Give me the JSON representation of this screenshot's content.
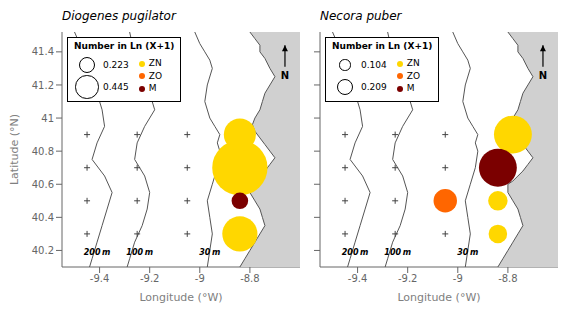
{
  "chart_data": [
    {
      "type": "scatter",
      "title": "Diogenes pugilator",
      "xlabel": "Longitude (°W)",
      "ylabel": "Latitude (°N)",
      "xlim": [
        -9.55,
        -8.6
      ],
      "ylim": [
        40.1,
        41.52
      ],
      "xticks": [
        -9.4,
        -9.2,
        -9,
        -8.8
      ],
      "yticks": [
        40.2,
        40.4,
        40.6,
        40.8,
        41,
        41.2,
        41.4
      ],
      "grid": false,
      "legend": "upper left",
      "size_legend": {
        "title": "Number in Ln (X+1)",
        "values": [
          0.223,
          0.445
        ]
      },
      "series": [
        {
          "name": "ZN",
          "color": "#FFD700",
          "x": [
            -8.84,
            -8.84,
            -8.84
          ],
          "y": [
            40.3,
            40.7,
            40.9
          ],
          "size": [
            0.18,
            0.445,
            0.15
          ]
        },
        {
          "name": "ZO",
          "color": "#FF6600",
          "x": [],
          "y": [],
          "size": []
        },
        {
          "name": "M",
          "color": "#7B0000",
          "x": [
            -8.84
          ],
          "y": [
            40.5
          ],
          "size": [
            0.04
          ]
        }
      ],
      "stations": {
        "color": "#444444",
        "marker": "plus",
        "x": [
          -9.45,
          -9.25,
          -9.05,
          -9.45,
          -9.25,
          -9.05,
          -9.45,
          -9.25,
          -9.05,
          -9.45,
          -9.25,
          -9.05
        ],
        "y": [
          40.3,
          40.3,
          40.3,
          40.5,
          40.5,
          40.5,
          40.7,
          40.7,
          40.7,
          40.9,
          40.9,
          40.9
        ]
      },
      "isobaths": [
        {
          "color": "#555555",
          "x": [
            -9.5,
            -9.48,
            -9.44,
            -9.43,
            -9.41,
            -9.39,
            -9.38,
            -9.41,
            -9.43,
            -9.38,
            -9.35,
            -9.37,
            -9.39,
            -9.41,
            -9.43,
            -9.44
          ],
          "y": [
            41.52,
            41.45,
            41.35,
            41.25,
            41.15,
            41.05,
            40.95,
            40.85,
            40.75,
            40.65,
            40.55,
            40.45,
            40.35,
            40.25,
            40.15,
            40.1
          ]
        },
        {
          "color": "#555555",
          "x": [
            -9.28,
            -9.27,
            -9.24,
            -9.22,
            -9.2,
            -9.18,
            -9.22,
            -9.25,
            -9.26,
            -9.22,
            -9.2,
            -9.21,
            -9.23,
            -9.26,
            -9.28,
            -9.29
          ],
          "y": [
            41.52,
            41.45,
            41.35,
            41.25,
            41.15,
            41.05,
            40.95,
            40.85,
            40.75,
            40.65,
            40.55,
            40.45,
            40.35,
            40.25,
            40.15,
            40.1
          ]
        },
        {
          "color": "#555555",
          "x": [
            -9.02,
            -9.0,
            -8.98,
            -8.96,
            -8.95,
            -8.97,
            -8.98,
            -8.96,
            -8.94,
            -8.92,
            -8.93,
            -8.92,
            -8.93,
            -8.95,
            -8.97,
            -8.96,
            -8.95,
            -8.96,
            -8.97
          ],
          "y": [
            41.52,
            41.45,
            41.4,
            41.35,
            41.3,
            41.2,
            41.1,
            41.0,
            40.95,
            40.9,
            40.85,
            40.8,
            40.7,
            40.6,
            40.5,
            40.4,
            40.3,
            40.2,
            40.1
          ]
        }
      ],
      "coastline": {
        "color": "#555555",
        "land_color": "#d0d0d0",
        "x": [
          -8.8,
          -8.78,
          -8.76,
          -8.76,
          -8.74,
          -8.72,
          -8.7,
          -8.72,
          -8.74,
          -8.75,
          -8.76,
          -8.78,
          -8.79,
          -8.78,
          -8.76,
          -8.74,
          -8.72,
          -8.7,
          -8.72,
          -8.74,
          -8.76,
          -8.78,
          -8.8,
          -8.8,
          -8.78,
          -8.76,
          -8.75,
          -8.74,
          -8.76,
          -8.78,
          -8.8,
          -8.82,
          -8.84
        ],
        "y": [
          41.52,
          41.48,
          41.44,
          41.4,
          41.36,
          41.3,
          41.25,
          41.2,
          41.15,
          41.1,
          41.05,
          41.0,
          40.96,
          40.92,
          40.88,
          40.84,
          40.8,
          40.76,
          40.72,
          40.68,
          40.65,
          40.62,
          40.6,
          40.55,
          40.5,
          40.45,
          40.4,
          40.35,
          40.3,
          40.25,
          40.2,
          40.15,
          40.1
        ]
      },
      "annotations": [
        {
          "text": "200 m",
          "x": -9.41,
          "y": 40.145
        },
        {
          "text": "100 m",
          "x": -9.24,
          "y": 40.145
        },
        {
          "text": "30 m",
          "x": -8.96,
          "y": 40.145
        },
        {
          "text": "N",
          "x": -8.66,
          "y": 41.31,
          "arrow_y": 41.44
        }
      ]
    },
    {
      "type": "scatter",
      "title": "Necora puber",
      "xlabel": "Longitude (°W)",
      "xlim": [
        -9.55,
        -8.6
      ],
      "ylim": [
        40.1,
        41.52
      ],
      "xticks": [
        -9.4,
        -9.2,
        -9,
        -8.8
      ],
      "yticks": [
        40.2,
        40.4,
        40.6,
        40.8,
        41,
        41.2,
        41.4
      ],
      "tick_labels": "x",
      "grid": false,
      "legend": "upper left",
      "size_legend": {
        "title": "Number in Ln (X+1)",
        "values": [
          0.104,
          0.209
        ]
      },
      "series": [
        {
          "name": "ZN",
          "color": "#FFD700",
          "x": [
            -8.84,
            -8.84,
            -8.78
          ],
          "y": [
            40.3,
            40.5,
            40.9
          ],
          "size": [
            0.05,
            0.055,
            0.209
          ]
        },
        {
          "name": "ZO",
          "color": "#FF6600",
          "x": [
            -9.05
          ],
          "y": [
            40.5
          ],
          "size": [
            0.08
          ]
        },
        {
          "name": "M",
          "color": "#7B0000",
          "x": [
            -8.84
          ],
          "y": [
            40.7
          ],
          "size": [
            0.209
          ]
        }
      ],
      "stations": {
        "color": "#444444",
        "marker": "plus",
        "x": [
          -9.45,
          -9.25,
          -9.05,
          -9.45,
          -9.25,
          -9.05,
          -9.45,
          -9.25,
          -9.05,
          -9.45,
          -9.25,
          -9.05
        ],
        "y": [
          40.3,
          40.3,
          40.3,
          40.5,
          40.5,
          40.5,
          40.7,
          40.7,
          40.7,
          40.9,
          40.9,
          40.9
        ]
      },
      "isobaths": [
        {
          "color": "#555555",
          "x": [
            -9.5,
            -9.48,
            -9.44,
            -9.43,
            -9.41,
            -9.39,
            -9.38,
            -9.41,
            -9.43,
            -9.38,
            -9.35,
            -9.37,
            -9.39,
            -9.41,
            -9.43,
            -9.44
          ],
          "y": [
            41.52,
            41.45,
            41.35,
            41.25,
            41.15,
            41.05,
            40.95,
            40.85,
            40.75,
            40.65,
            40.55,
            40.45,
            40.35,
            40.25,
            40.15,
            40.1
          ]
        },
        {
          "color": "#555555",
          "x": [
            -9.28,
            -9.27,
            -9.24,
            -9.22,
            -9.2,
            -9.18,
            -9.22,
            -9.25,
            -9.26,
            -9.22,
            -9.2,
            -9.21,
            -9.23,
            -9.26,
            -9.28,
            -9.29
          ],
          "y": [
            41.52,
            41.45,
            41.35,
            41.25,
            41.15,
            41.05,
            40.95,
            40.85,
            40.75,
            40.65,
            40.55,
            40.45,
            40.35,
            40.25,
            40.15,
            40.1
          ]
        },
        {
          "color": "#555555",
          "x": [
            -9.02,
            -9.0,
            -8.98,
            -8.96,
            -8.95,
            -8.97,
            -8.98,
            -8.96,
            -8.94,
            -8.92,
            -8.93,
            -8.92,
            -8.93,
            -8.95,
            -8.97,
            -8.96,
            -8.95,
            -8.96,
            -8.97
          ],
          "y": [
            41.52,
            41.45,
            41.4,
            41.35,
            41.3,
            41.2,
            41.1,
            41.0,
            40.95,
            40.9,
            40.85,
            40.8,
            40.7,
            40.6,
            40.5,
            40.4,
            40.3,
            40.2,
            40.1
          ]
        }
      ],
      "coastline": {
        "color": "#555555",
        "land_color": "#d0d0d0",
        "x": [
          -8.8,
          -8.78,
          -8.76,
          -8.76,
          -8.74,
          -8.72,
          -8.7,
          -8.72,
          -8.74,
          -8.75,
          -8.76,
          -8.78,
          -8.79,
          -8.78,
          -8.76,
          -8.74,
          -8.72,
          -8.7,
          -8.72,
          -8.74,
          -8.76,
          -8.78,
          -8.8,
          -8.8,
          -8.78,
          -8.76,
          -8.75,
          -8.74,
          -8.76,
          -8.78,
          -8.8,
          -8.82,
          -8.84
        ],
        "y": [
          41.52,
          41.48,
          41.44,
          41.4,
          41.36,
          41.3,
          41.25,
          41.2,
          41.15,
          41.1,
          41.05,
          41.0,
          40.96,
          40.92,
          40.88,
          40.84,
          40.8,
          40.76,
          40.72,
          40.68,
          40.65,
          40.62,
          40.6,
          40.55,
          40.5,
          40.45,
          40.4,
          40.35,
          40.3,
          40.25,
          40.2,
          40.15,
          40.1
        ]
      },
      "annotations": [
        {
          "text": "200 m",
          "x": -9.41,
          "y": 40.145
        },
        {
          "text": "100 m",
          "x": -9.24,
          "y": 40.145
        },
        {
          "text": "30 m",
          "x": -8.96,
          "y": 40.145
        },
        {
          "text": "N",
          "x": -8.66,
          "y": 41.31,
          "arrow_y": 41.44
        }
      ]
    }
  ]
}
